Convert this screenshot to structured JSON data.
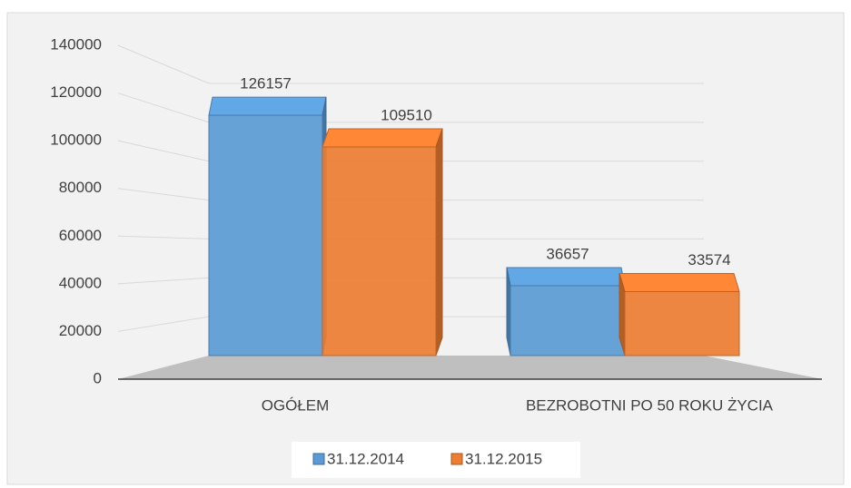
{
  "chart_data": {
    "type": "bar3d",
    "categories": [
      "OGÓŁEM",
      "BEZROBOTNI PO 50 ROKU ŻYCIA"
    ],
    "series": [
      {
        "name": "31.12.2014",
        "color": "#5b9bd5",
        "values": [
          126157,
          36657
        ]
      },
      {
        "name": "31.12.2015",
        "color": "#ed7d31",
        "values": [
          109510,
          33574
        ]
      }
    ],
    "ylim": [
      0,
      140000
    ],
    "yticks": [
      0,
      20000,
      40000,
      60000,
      80000,
      100000,
      120000,
      140000
    ],
    "grid": true,
    "legend": "bottom"
  }
}
